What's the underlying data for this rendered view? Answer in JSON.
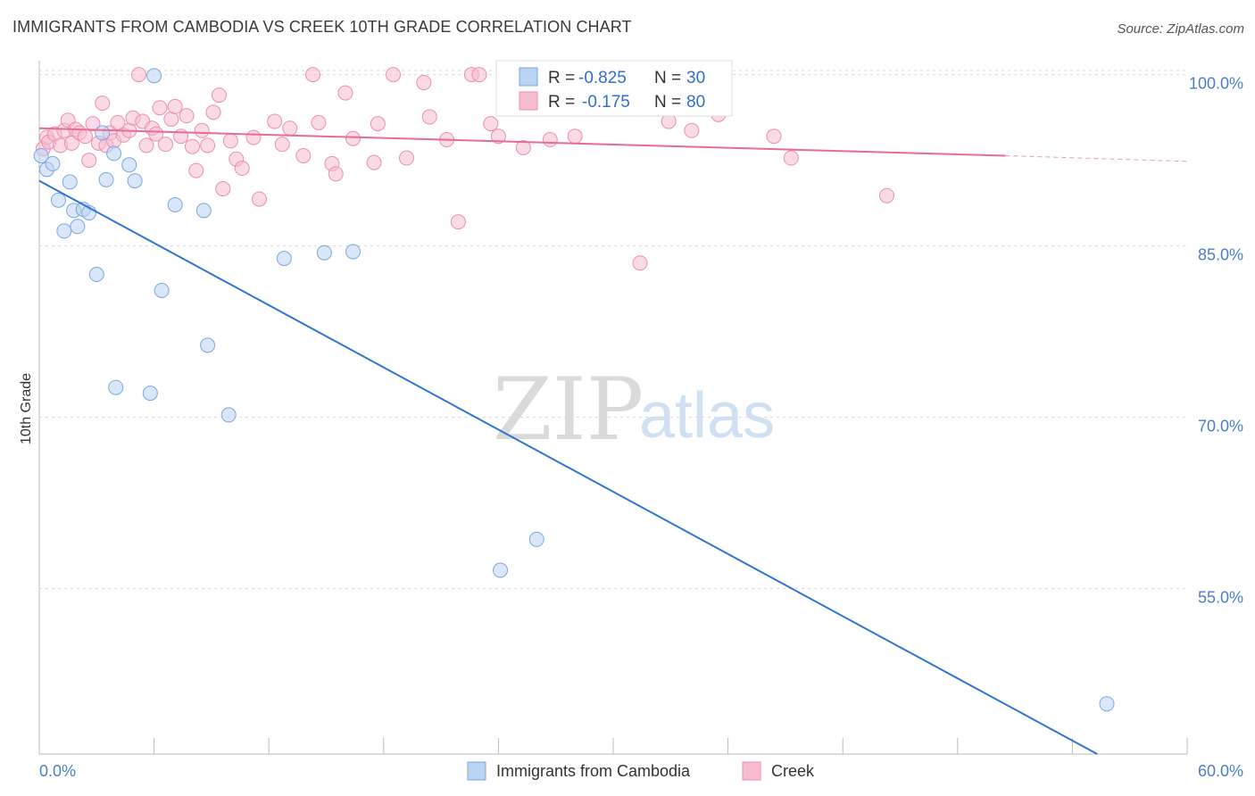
{
  "title": "IMMIGRANTS FROM CAMBODIA VS CREEK 10TH GRADE CORRELATION CHART",
  "source": "Source: ZipAtlas.com",
  "watermark": {
    "zip": "ZIP",
    "atlas": "atlas"
  },
  "colors": {
    "blue": "#2f74d0",
    "blue_fill": "#b9d3f3",
    "pink": "#e86b97",
    "pink_fill": "#f6bcd0",
    "tick": "#4a7ec9"
  },
  "legend": {
    "rows": [
      {
        "r_label": "R =",
        "r_value": "-0.825",
        "n_label": "N =",
        "n_value": "30"
      },
      {
        "r_label": "R =",
        "r_value": "-0.175",
        "n_label": "N =",
        "n_value": "80"
      }
    ]
  },
  "chart_data": {
    "type": "scatter",
    "title": "IMMIGRANTS FROM CAMBODIA VS CREEK 10TH GRADE CORRELATION CHART",
    "xlabel": "",
    "ylabel": "10th Grade",
    "xlim": [
      0,
      60
    ],
    "ylim": [
      40.5,
      102
    ],
    "x_tick_labels": [
      "0.0%",
      "60.0%"
    ],
    "y_ticks": [
      55,
      70,
      85,
      100
    ],
    "y_tick_labels": [
      "55.0%",
      "70.0%",
      "85.0%",
      "100.0%"
    ],
    "grid": true,
    "legend_position": "top-center",
    "series": [
      {
        "name": "Immigrants from Cambodia",
        "color": "#2f74d0",
        "points": [
          [
            0.1,
            92.9
          ],
          [
            0.4,
            91.7
          ],
          [
            0.7,
            92.2
          ],
          [
            1.0,
            89.0
          ],
          [
            1.3,
            86.3
          ],
          [
            1.6,
            90.6
          ],
          [
            1.8,
            88.1
          ],
          [
            2.0,
            86.7
          ],
          [
            2.3,
            88.2
          ],
          [
            2.6,
            87.9
          ],
          [
            3.0,
            82.5
          ],
          [
            3.3,
            94.9
          ],
          [
            3.5,
            90.8
          ],
          [
            3.9,
            93.1
          ],
          [
            4.0,
            72.6
          ],
          [
            4.7,
            92.1
          ],
          [
            5.0,
            90.7
          ],
          [
            5.8,
            72.1
          ],
          [
            6.0,
            99.9
          ],
          [
            6.4,
            81.1
          ],
          [
            7.1,
            88.6
          ],
          [
            8.6,
            88.1
          ],
          [
            8.8,
            76.3
          ],
          [
            9.9,
            70.2
          ],
          [
            12.8,
            83.9
          ],
          [
            14.9,
            84.4
          ],
          [
            16.4,
            84.5
          ],
          [
            24.1,
            56.6
          ],
          [
            26.0,
            59.3
          ],
          [
            55.8,
            44.9
          ]
        ],
        "trend": {
          "x": [
            0,
            55.3
          ],
          "y": [
            90.7,
            40.5
          ]
        }
      },
      {
        "name": "Creek",
        "color": "#e86b97",
        "points": [
          [
            0.2,
            93.5
          ],
          [
            0.4,
            94.5
          ],
          [
            0.5,
            94.1
          ],
          [
            0.8,
            94.8
          ],
          [
            1.1,
            93.8
          ],
          [
            1.3,
            95.1
          ],
          [
            1.5,
            96.0
          ],
          [
            1.7,
            94.0
          ],
          [
            1.9,
            95.2
          ],
          [
            2.1,
            94.9
          ],
          [
            2.4,
            94.6
          ],
          [
            2.6,
            92.5
          ],
          [
            2.8,
            95.7
          ],
          [
            3.1,
            94.0
          ],
          [
            3.3,
            97.5
          ],
          [
            3.5,
            93.8
          ],
          [
            3.7,
            94.9
          ],
          [
            3.9,
            94.2
          ],
          [
            4.1,
            95.8
          ],
          [
            4.4,
            94.7
          ],
          [
            4.7,
            95.1
          ],
          [
            4.9,
            96.2
          ],
          [
            5.2,
            100.0
          ],
          [
            5.4,
            95.9
          ],
          [
            5.6,
            93.8
          ],
          [
            5.9,
            95.3
          ],
          [
            6.1,
            94.8
          ],
          [
            6.3,
            97.1
          ],
          [
            6.6,
            93.9
          ],
          [
            6.9,
            96.1
          ],
          [
            7.1,
            97.2
          ],
          [
            7.4,
            94.6
          ],
          [
            7.7,
            96.4
          ],
          [
            8.0,
            93.7
          ],
          [
            8.2,
            91.6
          ],
          [
            8.5,
            95.1
          ],
          [
            8.8,
            93.8
          ],
          [
            9.1,
            96.7
          ],
          [
            9.4,
            98.2
          ],
          [
            9.6,
            90.0
          ],
          [
            10.0,
            94.2
          ],
          [
            10.3,
            92.6
          ],
          [
            10.6,
            91.8
          ],
          [
            11.2,
            94.5
          ],
          [
            11.5,
            89.1
          ],
          [
            12.3,
            95.9
          ],
          [
            12.7,
            93.9
          ],
          [
            13.1,
            95.3
          ],
          [
            13.8,
            92.9
          ],
          [
            14.3,
            100.0
          ],
          [
            14.6,
            95.8
          ],
          [
            15.3,
            92.2
          ],
          [
            15.5,
            91.3
          ],
          [
            16.0,
            98.4
          ],
          [
            16.4,
            94.4
          ],
          [
            17.5,
            92.3
          ],
          [
            17.7,
            95.7
          ],
          [
            18.5,
            100.0
          ],
          [
            19.2,
            92.7
          ],
          [
            20.4,
            96.3
          ],
          [
            21.3,
            94.3
          ],
          [
            21.9,
            87.1
          ],
          [
            22.6,
            100.0
          ],
          [
            23.0,
            100.0
          ],
          [
            23.6,
            95.7
          ],
          [
            24.0,
            94.6
          ],
          [
            24.6,
            98.1
          ],
          [
            25.3,
            93.6
          ],
          [
            26.7,
            94.3
          ],
          [
            28.0,
            94.6
          ],
          [
            29.0,
            99.0
          ],
          [
            30.3,
            97.6
          ],
          [
            31.4,
            83.5
          ],
          [
            32.9,
            95.9
          ],
          [
            34.1,
            95.1
          ],
          [
            38.4,
            94.6
          ],
          [
            39.3,
            92.7
          ],
          [
            44.3,
            89.4
          ],
          [
            35.5,
            96.5
          ],
          [
            20.1,
            99.3
          ]
        ],
        "trend": {
          "x": [
            0,
            50.5
          ],
          "y": [
            95.3,
            92.9
          ]
        },
        "trend_dashed": {
          "x": [
            50.5,
            60
          ],
          "y": [
            92.9,
            92.4
          ]
        }
      }
    ]
  }
}
